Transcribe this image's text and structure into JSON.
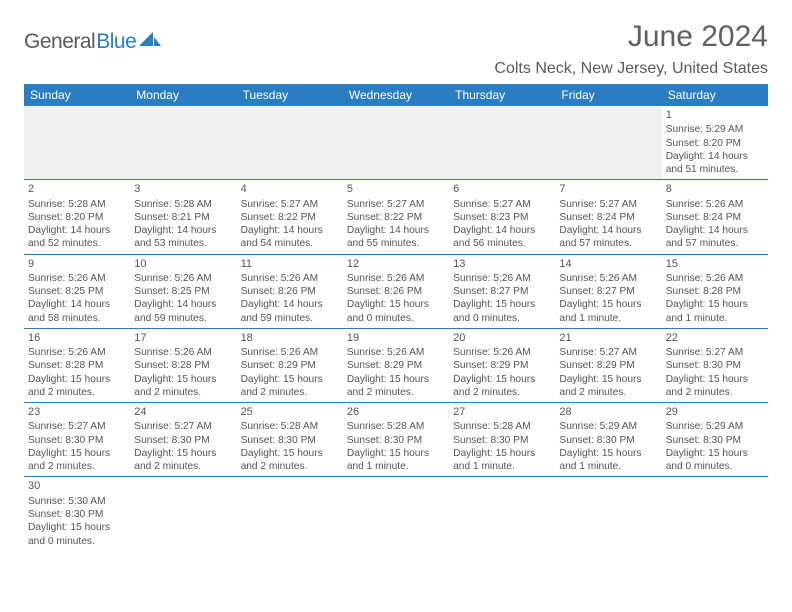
{
  "logo": {
    "text1": "General",
    "text2": "Blue",
    "shape_color": "#2a7dc1"
  },
  "title": "June 2024",
  "location": "Colts Neck, New Jersey, United States",
  "weekdays": [
    "Sunday",
    "Monday",
    "Tuesday",
    "Wednesday",
    "Thursday",
    "Friday",
    "Saturday"
  ],
  "header_bg": "#2a7dc1",
  "divider_color": "#2a7dc1",
  "text_color": "#555555",
  "font_size_day": 11,
  "font_size_detail": 10.2,
  "weeks": [
    [
      null,
      null,
      null,
      null,
      null,
      null,
      {
        "n": "1",
        "sr": "Sunrise: 5:29 AM",
        "ss": "Sunset: 8:20 PM",
        "d1": "Daylight: 14 hours",
        "d2": "and 51 minutes."
      }
    ],
    [
      {
        "n": "2",
        "sr": "Sunrise: 5:28 AM",
        "ss": "Sunset: 8:20 PM",
        "d1": "Daylight: 14 hours",
        "d2": "and 52 minutes."
      },
      {
        "n": "3",
        "sr": "Sunrise: 5:28 AM",
        "ss": "Sunset: 8:21 PM",
        "d1": "Daylight: 14 hours",
        "d2": "and 53 minutes."
      },
      {
        "n": "4",
        "sr": "Sunrise: 5:27 AM",
        "ss": "Sunset: 8:22 PM",
        "d1": "Daylight: 14 hours",
        "d2": "and 54 minutes."
      },
      {
        "n": "5",
        "sr": "Sunrise: 5:27 AM",
        "ss": "Sunset: 8:22 PM",
        "d1": "Daylight: 14 hours",
        "d2": "and 55 minutes."
      },
      {
        "n": "6",
        "sr": "Sunrise: 5:27 AM",
        "ss": "Sunset: 8:23 PM",
        "d1": "Daylight: 14 hours",
        "d2": "and 56 minutes."
      },
      {
        "n": "7",
        "sr": "Sunrise: 5:27 AM",
        "ss": "Sunset: 8:24 PM",
        "d1": "Daylight: 14 hours",
        "d2": "and 57 minutes."
      },
      {
        "n": "8",
        "sr": "Sunrise: 5:26 AM",
        "ss": "Sunset: 8:24 PM",
        "d1": "Daylight: 14 hours",
        "d2": "and 57 minutes."
      }
    ],
    [
      {
        "n": "9",
        "sr": "Sunrise: 5:26 AM",
        "ss": "Sunset: 8:25 PM",
        "d1": "Daylight: 14 hours",
        "d2": "and 58 minutes."
      },
      {
        "n": "10",
        "sr": "Sunrise: 5:26 AM",
        "ss": "Sunset: 8:25 PM",
        "d1": "Daylight: 14 hours",
        "d2": "and 59 minutes."
      },
      {
        "n": "11",
        "sr": "Sunrise: 5:26 AM",
        "ss": "Sunset: 8:26 PM",
        "d1": "Daylight: 14 hours",
        "d2": "and 59 minutes."
      },
      {
        "n": "12",
        "sr": "Sunrise: 5:26 AM",
        "ss": "Sunset: 8:26 PM",
        "d1": "Daylight: 15 hours",
        "d2": "and 0 minutes."
      },
      {
        "n": "13",
        "sr": "Sunrise: 5:26 AM",
        "ss": "Sunset: 8:27 PM",
        "d1": "Daylight: 15 hours",
        "d2": "and 0 minutes."
      },
      {
        "n": "14",
        "sr": "Sunrise: 5:26 AM",
        "ss": "Sunset: 8:27 PM",
        "d1": "Daylight: 15 hours",
        "d2": "and 1 minute."
      },
      {
        "n": "15",
        "sr": "Sunrise: 5:26 AM",
        "ss": "Sunset: 8:28 PM",
        "d1": "Daylight: 15 hours",
        "d2": "and 1 minute."
      }
    ],
    [
      {
        "n": "16",
        "sr": "Sunrise: 5:26 AM",
        "ss": "Sunset: 8:28 PM",
        "d1": "Daylight: 15 hours",
        "d2": "and 2 minutes."
      },
      {
        "n": "17",
        "sr": "Sunrise: 5:26 AM",
        "ss": "Sunset: 8:28 PM",
        "d1": "Daylight: 15 hours",
        "d2": "and 2 minutes."
      },
      {
        "n": "18",
        "sr": "Sunrise: 5:26 AM",
        "ss": "Sunset: 8:29 PM",
        "d1": "Daylight: 15 hours",
        "d2": "and 2 minutes."
      },
      {
        "n": "19",
        "sr": "Sunrise: 5:26 AM",
        "ss": "Sunset: 8:29 PM",
        "d1": "Daylight: 15 hours",
        "d2": "and 2 minutes."
      },
      {
        "n": "20",
        "sr": "Sunrise: 5:26 AM",
        "ss": "Sunset: 8:29 PM",
        "d1": "Daylight: 15 hours",
        "d2": "and 2 minutes."
      },
      {
        "n": "21",
        "sr": "Sunrise: 5:27 AM",
        "ss": "Sunset: 8:29 PM",
        "d1": "Daylight: 15 hours",
        "d2": "and 2 minutes."
      },
      {
        "n": "22",
        "sr": "Sunrise: 5:27 AM",
        "ss": "Sunset: 8:30 PM",
        "d1": "Daylight: 15 hours",
        "d2": "and 2 minutes."
      }
    ],
    [
      {
        "n": "23",
        "sr": "Sunrise: 5:27 AM",
        "ss": "Sunset: 8:30 PM",
        "d1": "Daylight: 15 hours",
        "d2": "and 2 minutes."
      },
      {
        "n": "24",
        "sr": "Sunrise: 5:27 AM",
        "ss": "Sunset: 8:30 PM",
        "d1": "Daylight: 15 hours",
        "d2": "and 2 minutes."
      },
      {
        "n": "25",
        "sr": "Sunrise: 5:28 AM",
        "ss": "Sunset: 8:30 PM",
        "d1": "Daylight: 15 hours",
        "d2": "and 2 minutes."
      },
      {
        "n": "26",
        "sr": "Sunrise: 5:28 AM",
        "ss": "Sunset: 8:30 PM",
        "d1": "Daylight: 15 hours",
        "d2": "and 1 minute."
      },
      {
        "n": "27",
        "sr": "Sunrise: 5:28 AM",
        "ss": "Sunset: 8:30 PM",
        "d1": "Daylight: 15 hours",
        "d2": "and 1 minute."
      },
      {
        "n": "28",
        "sr": "Sunrise: 5:29 AM",
        "ss": "Sunset: 8:30 PM",
        "d1": "Daylight: 15 hours",
        "d2": "and 1 minute."
      },
      {
        "n": "29",
        "sr": "Sunrise: 5:29 AM",
        "ss": "Sunset: 8:30 PM",
        "d1": "Daylight: 15 hours",
        "d2": "and 0 minutes."
      }
    ],
    [
      {
        "n": "30",
        "sr": "Sunrise: 5:30 AM",
        "ss": "Sunset: 8:30 PM",
        "d1": "Daylight: 15 hours",
        "d2": "and 0 minutes."
      },
      null,
      null,
      null,
      null,
      null,
      null
    ]
  ]
}
